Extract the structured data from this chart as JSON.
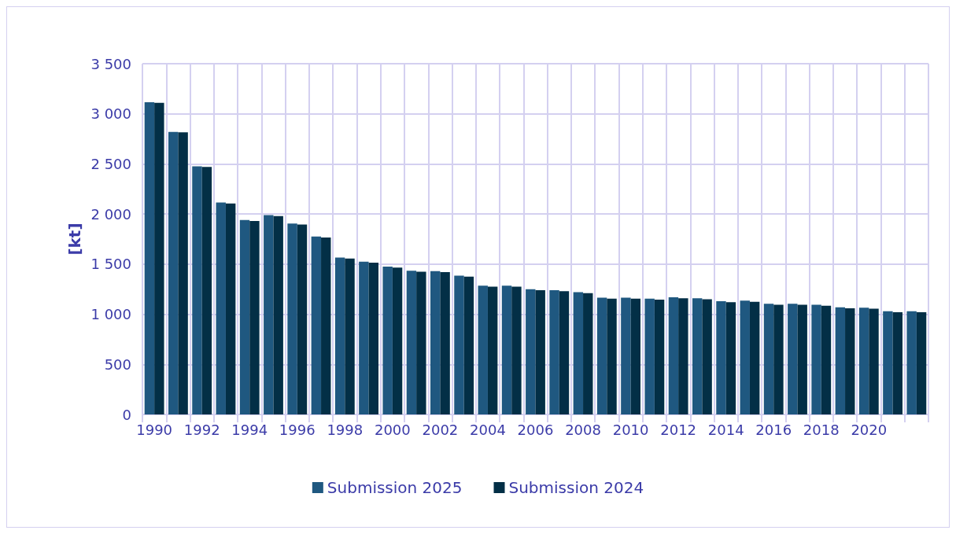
{
  "chart_data": {
    "type": "bar",
    "ylabel": "[kt]",
    "categories": [
      "1990",
      null,
      "1992",
      null,
      "1994",
      null,
      "1996",
      null,
      "1998",
      null,
      "2000",
      null,
      "2002",
      null,
      "2004",
      null,
      "2006",
      null,
      "2008",
      null,
      "2010",
      null,
      "2012",
      null,
      "2014",
      null,
      "2016",
      null,
      "2018",
      null,
      "2020",
      null,
      null
    ],
    "series": [
      {
        "name": "Submission 2025",
        "color": "#1f5880",
        "values": [
          3115,
          2820,
          2475,
          2115,
          1940,
          1990,
          1905,
          1775,
          1565,
          1525,
          1475,
          1435,
          1430,
          1385,
          1285,
          1285,
          1250,
          1240,
          1220,
          1165,
          1165,
          1155,
          1170,
          1160,
          1130,
          1135,
          1105,
          1105,
          1095,
          1070,
          1065,
          1030,
          1030
        ]
      },
      {
        "name": "Submission 2024",
        "color": "#032f46",
        "values": [
          3110,
          2815,
          2470,
          2105,
          1930,
          1980,
          1895,
          1765,
          1555,
          1515,
          1465,
          1425,
          1420,
          1375,
          1275,
          1275,
          1240,
          1230,
          1210,
          1155,
          1155,
          1145,
          1160,
          1150,
          1120,
          1125,
          1095,
          1095,
          1085,
          1060,
          1055,
          1020,
          1020
        ]
      }
    ],
    "ylim": [
      0,
      3500
    ],
    "yticks": [
      0,
      500,
      {
        "value": 1000,
        "label": "1 000"
      },
      {
        "value": 1500,
        "label": "1 500"
      },
      {
        "value": 2000,
        "label": "2 000"
      },
      {
        "value": 2500,
        "label": "2 500"
      },
      {
        "value": 3000,
        "label": "3 000"
      },
      {
        "value": 3500,
        "label": "3 500"
      }
    ],
    "grid": true,
    "legend": "bottom"
  }
}
